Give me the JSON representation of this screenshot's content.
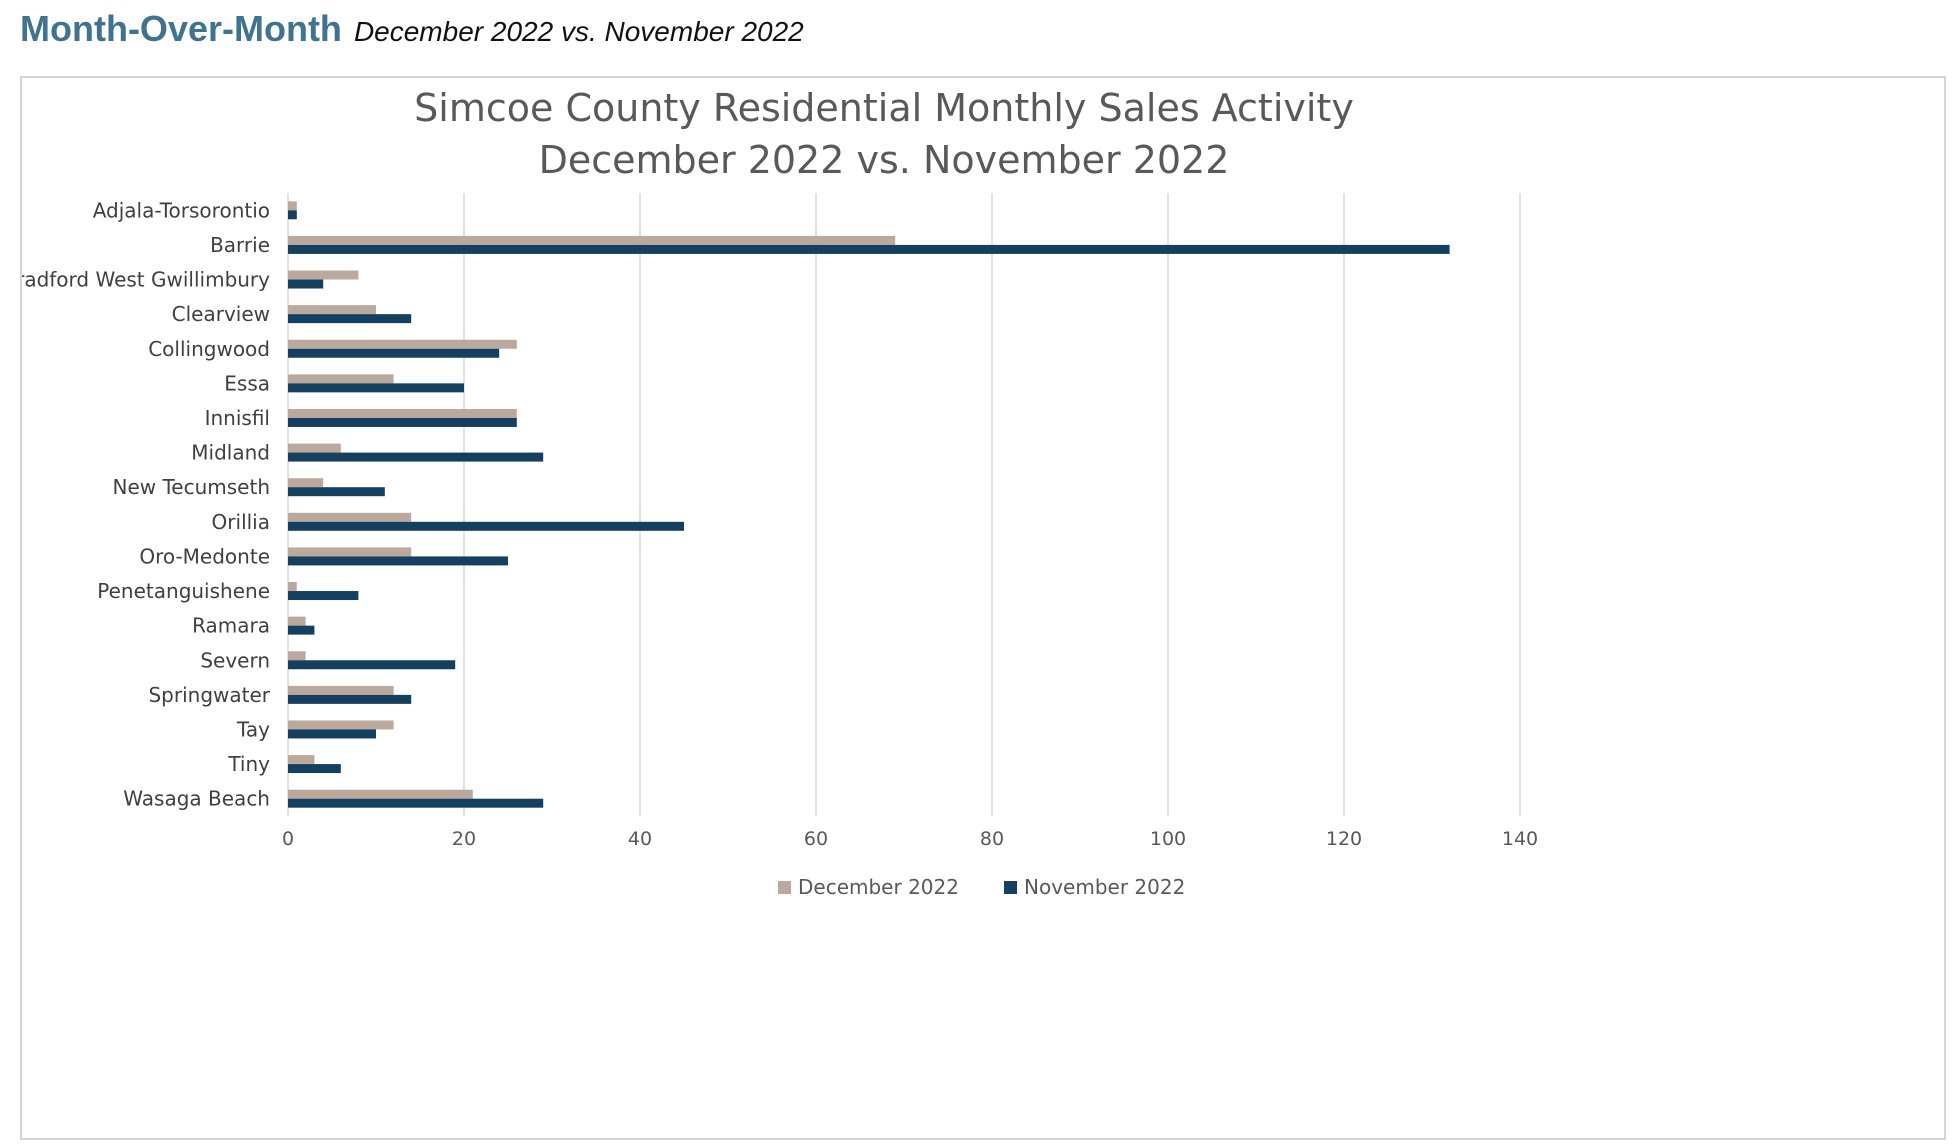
{
  "header": {
    "title": "Month-Over-Month",
    "subtitle": "December 2022 vs. November 2022"
  },
  "colors": {
    "december": "#bca99d",
    "november": "#153f5e",
    "heading": "#3f7390",
    "gridline": "#d9d9d9",
    "text": "#595959"
  },
  "chart_data": {
    "type": "bar",
    "orientation": "horizontal",
    "title": "Simcoe County Residential Monthly Sales Activity",
    "subtitle": "December 2022 vs. November 2022",
    "categories": [
      "Adjala-Torsorontio",
      "Barrie",
      "Bradford West Gwillimbury",
      "Clearview",
      "Collingwood",
      "Essa",
      "Innisfil",
      "Midland",
      "New Tecumseth",
      "Orillia",
      "Oro-Medonte",
      "Penetanguishene",
      "Ramara",
      "Severn",
      "Springwater",
      "Tay",
      "Tiny",
      "Wasaga Beach"
    ],
    "series": [
      {
        "name": "December 2022",
        "values": [
          1,
          69,
          8,
          10,
          26,
          12,
          26,
          6,
          4,
          14,
          14,
          1,
          2,
          2,
          12,
          12,
          3,
          21
        ]
      },
      {
        "name": "November 2022",
        "values": [
          1,
          132,
          4,
          14,
          24,
          20,
          26,
          29,
          11,
          45,
          25,
          8,
          3,
          19,
          14,
          10,
          6,
          29
        ]
      }
    ],
    "xlim": [
      0,
      140
    ],
    "xticks": [
      "0",
      "20",
      "40",
      "60",
      "80",
      "100",
      "120",
      "140"
    ],
    "grid": "vertical",
    "legend": "bottom"
  }
}
